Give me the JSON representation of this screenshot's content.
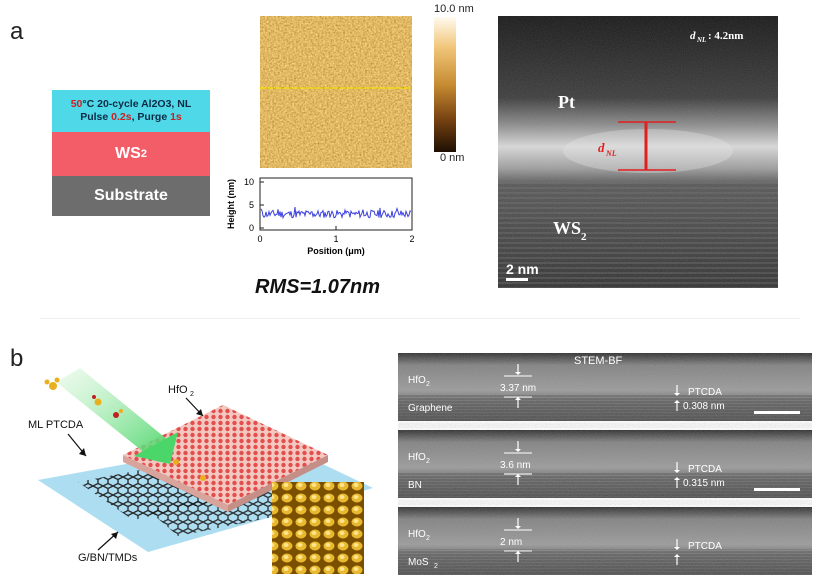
{
  "panel_a": {
    "letter": "a",
    "stack": {
      "top_layer_line1_red": "50",
      "top_layer_line1_rest": "°C 20-cycle Al2O3, NL",
      "top_layer_line2_a": "Pulse ",
      "top_layer_line2_b": "0.2s",
      "top_layer_line2_c": ", Purge ",
      "top_layer_line2_d": "1s",
      "ws2_label": "WS",
      "ws2_sub": "2",
      "substrate_label": "Substrate"
    },
    "afm": {
      "colorbar_max": "10.0 nm",
      "colorbar_min": "0 nm"
    },
    "profile": {
      "ylabel": "Height (nm)",
      "xlabel": "Position (μm)",
      "yticks": [
        "10",
        "5",
        "0"
      ],
      "xticks": [
        "0",
        "1",
        "2"
      ]
    },
    "rms_text": "RMS=1.07nm",
    "tem": {
      "annotation_d": "d",
      "annotation_sub": "NL",
      "annotation_value": " : 4.2nm",
      "pt_label": "Pt",
      "ws2_label": "WS",
      "ws2_sub": "2",
      "scale_label": "2 nm",
      "colors": {
        "red_marker": "#e02020"
      }
    }
  },
  "panel_b": {
    "letter": "b",
    "schematic": {
      "hfo2_label": "HfO",
      "hfo2_sub": "2",
      "ml_ptcda_label": "ML PTCDA",
      "substrate_label": "G/BN/TMDs"
    },
    "stem": {
      "header": "STEM-BF",
      "rows": [
        {
          "left_top": "HfO",
          "left_top_sub": "2",
          "thickness": "3.37 nm",
          "left_bottom": "Graphene",
          "left_bottom_sub": "",
          "right_top": "PTCDA",
          "right_bottom": "0.308 nm"
        },
        {
          "left_top": "HfO",
          "left_top_sub": "2",
          "thickness": "3.6 nm",
          "left_bottom": "BN",
          "left_bottom_sub": "",
          "right_top": "PTCDA",
          "right_bottom": "0.315 nm"
        },
        {
          "left_top": "HfO",
          "left_top_sub": "2",
          "thickness": "2 nm",
          "left_bottom": "MoS",
          "left_bottom_sub": "2",
          "right_top": "PTCDA",
          "right_bottom": ""
        }
      ]
    }
  }
}
